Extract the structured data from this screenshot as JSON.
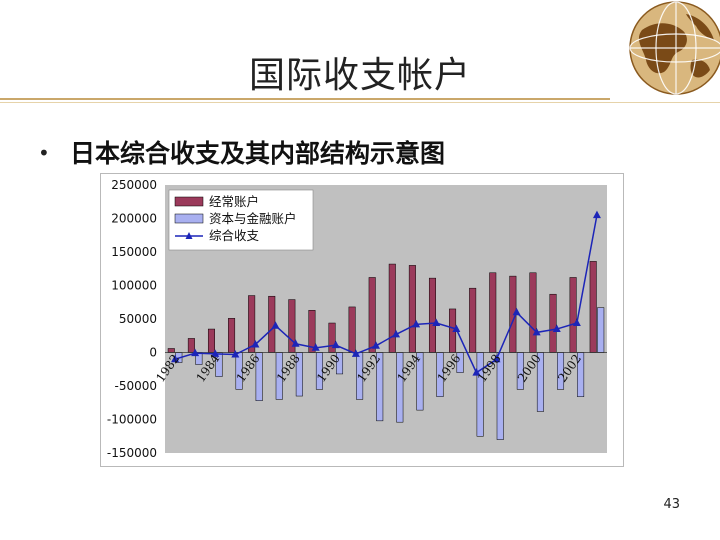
{
  "slide": {
    "title": "国际收支帐户",
    "bullet": "日本综合收支及其内部结构示意图",
    "page_number": "43"
  },
  "colors": {
    "current_account_bar": "#9b3a5b",
    "capital_financial_bar": "#a9b0f0",
    "overall_balance_line": "#1c25b8",
    "plot_background": "#c0c0c0",
    "title_rule": "#caa76a"
  },
  "icons": [
    "globe-logo-icon"
  ],
  "chart_data": {
    "type": "bar",
    "title": "",
    "xlabel": "",
    "ylabel": "",
    "ylim": [
      -150000,
      250000
    ],
    "y_ticks": [
      250000,
      200000,
      150000,
      100000,
      50000,
      0,
      -50000,
      -100000,
      -150000
    ],
    "y_tick_labels": [
      "250000",
      "200000",
      "150000",
      "100000",
      "50000",
      "0",
      "-50000",
      "-100000",
      "-150000"
    ],
    "x_tick_labels": [
      "1982",
      "1984",
      "1986",
      "1988",
      "1990",
      "1992",
      "1994",
      "1996",
      "1998",
      "2000",
      "2002"
    ],
    "categories": [
      "1982",
      "1983",
      "1984",
      "1985",
      "1986",
      "1987",
      "1988",
      "1989",
      "1990",
      "1991",
      "1992",
      "1993",
      "1994",
      "1995",
      "1996",
      "1997",
      "1998",
      "1999",
      "2000",
      "2001",
      "2002",
      "2003"
    ],
    "series": [
      {
        "name": "经常账户",
        "type": "bar",
        "values": [
          6000,
          21000,
          35000,
          51000,
          85000,
          84000,
          79000,
          63000,
          44000,
          68000,
          112000,
          132000,
          130000,
          111000,
          65000,
          96000,
          119000,
          114000,
          119000,
          87000,
          112000,
          136000
        ]
      },
      {
        "name": "资本与金融账户",
        "type": "bar",
        "values": [
          -15000,
          -18000,
          -36000,
          -55000,
          -72000,
          -70000,
          -65000,
          -55000,
          -32000,
          -70000,
          -102000,
          -104000,
          -86000,
          -66000,
          -30000,
          -125000,
          -130000,
          -55000,
          -88000,
          -55000,
          -66000,
          67000
        ]
      },
      {
        "name": "综合收支",
        "type": "line",
        "values": [
          -10000,
          -1000,
          -2000,
          -3000,
          12000,
          40000,
          13000,
          7000,
          11000,
          -2000,
          10000,
          27000,
          42000,
          44000,
          35000,
          -30000,
          -10000,
          60000,
          30000,
          35000,
          44000,
          205000
        ]
      }
    ],
    "legend": {
      "placement": "top-left"
    },
    "grid": false
  }
}
